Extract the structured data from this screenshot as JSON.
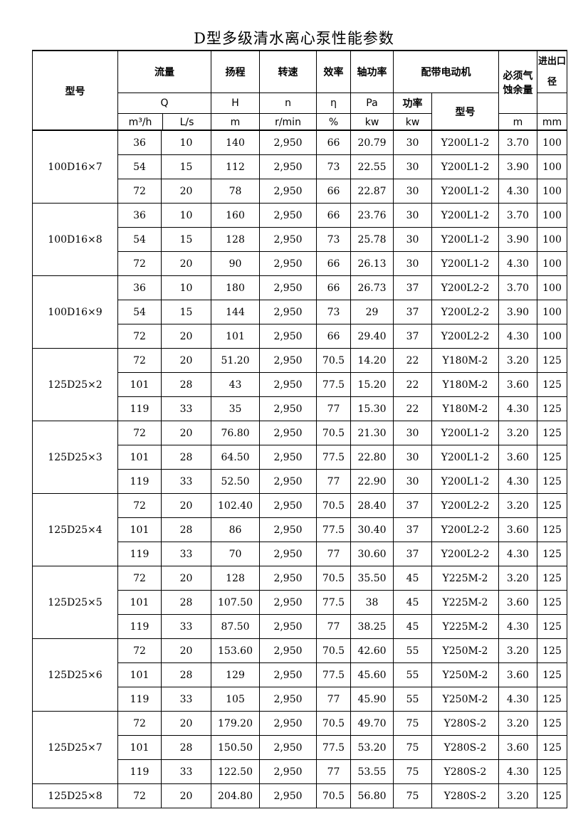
{
  "title": "D型多级清水离心泵性能参数",
  "header": {
    "model": "型号",
    "flow": "流量",
    "head": "扬程",
    "speed": "转速",
    "eff": "效率",
    "shaft_power": "轴功率",
    "motor": "配带电动机",
    "npsh": "必须气蚀余量",
    "diameter": "进出口径",
    "Q": "Q",
    "H": "H",
    "n": "n",
    "eta": "η",
    "Pa": "Pa",
    "motor_power": "功率",
    "motor_model": "型号",
    "u_flow1": "m³/h",
    "u_flow2": "L/s",
    "u_head": "m",
    "u_speed": "r/min",
    "u_eff": "%",
    "u_pa": "kw",
    "u_mp": "kw",
    "u_npsh": "m",
    "u_dia": "mm"
  },
  "groups": [
    {
      "model": "100D16×7",
      "rows": [
        [
          "36",
          "10",
          "140",
          "2,950",
          "66",
          "20.79",
          "30",
          "Y200L1-2",
          "3.70",
          "100"
        ],
        [
          "54",
          "15",
          "112",
          "2,950",
          "73",
          "22.55",
          "30",
          "Y200L1-2",
          "3.90",
          "100"
        ],
        [
          "72",
          "20",
          "78",
          "2,950",
          "66",
          "22.87",
          "30",
          "Y200L1-2",
          "4.30",
          "100"
        ]
      ]
    },
    {
      "model": "100D16×8",
      "rows": [
        [
          "36",
          "10",
          "160",
          "2,950",
          "66",
          "23.76",
          "30",
          "Y200L1-2",
          "3.70",
          "100"
        ],
        [
          "54",
          "15",
          "128",
          "2,950",
          "73",
          "25.78",
          "30",
          "Y200L1-2",
          "3.90",
          "100"
        ],
        [
          "72",
          "20",
          "90",
          "2,950",
          "66",
          "26.13",
          "30",
          "Y200L1-2",
          "4.30",
          "100"
        ]
      ]
    },
    {
      "model": "100D16×9",
      "rows": [
        [
          "36",
          "10",
          "180",
          "2,950",
          "66",
          "26.73",
          "37",
          "Y200L2-2",
          "3.70",
          "100"
        ],
        [
          "54",
          "15",
          "144",
          "2,950",
          "73",
          "29",
          "37",
          "Y200L2-2",
          "3.90",
          "100"
        ],
        [
          "72",
          "20",
          "101",
          "2,950",
          "66",
          "29.40",
          "37",
          "Y200L2-2",
          "4.30",
          "100"
        ]
      ]
    },
    {
      "model": "125D25×2",
      "rows": [
        [
          "72",
          "20",
          "51.20",
          "2,950",
          "70.5",
          "14.20",
          "22",
          "Y180M-2",
          "3.20",
          "125"
        ],
        [
          "101",
          "28",
          "43",
          "2,950",
          "77.5",
          "15.20",
          "22",
          "Y180M-2",
          "3.60",
          "125"
        ],
        [
          "119",
          "33",
          "35",
          "2,950",
          "77",
          "15.30",
          "22",
          "Y180M-2",
          "4.30",
          "125"
        ]
      ]
    },
    {
      "model": "125D25×3",
      "rows": [
        [
          "72",
          "20",
          "76.80",
          "2,950",
          "70.5",
          "21.30",
          "30",
          "Y200L1-2",
          "3.20",
          "125"
        ],
        [
          "101",
          "28",
          "64.50",
          "2,950",
          "77.5",
          "22.80",
          "30",
          "Y200L1-2",
          "3.60",
          "125"
        ],
        [
          "119",
          "33",
          "52.50",
          "2,950",
          "77",
          "22.90",
          "30",
          "Y200L1-2",
          "4.30",
          "125"
        ]
      ]
    },
    {
      "model": "125D25×4",
      "rows": [
        [
          "72",
          "20",
          "102.40",
          "2,950",
          "70.5",
          "28.40",
          "37",
          "Y200L2-2",
          "3.20",
          "125"
        ],
        [
          "101",
          "28",
          "86",
          "2,950",
          "77.5",
          "30.40",
          "37",
          "Y200L2-2",
          "3.60",
          "125"
        ],
        [
          "119",
          "33",
          "70",
          "2,950",
          "77",
          "30.60",
          "37",
          "Y200L2-2",
          "4.30",
          "125"
        ]
      ]
    },
    {
      "model": "125D25×5",
      "rows": [
        [
          "72",
          "20",
          "128",
          "2,950",
          "70.5",
          "35.50",
          "45",
          "Y225M-2",
          "3.20",
          "125"
        ],
        [
          "101",
          "28",
          "107.50",
          "2,950",
          "77.5",
          "38",
          "45",
          "Y225M-2",
          "3.60",
          "125"
        ],
        [
          "119",
          "33",
          "87.50",
          "2,950",
          "77",
          "38.25",
          "45",
          "Y225M-2",
          "4.30",
          "125"
        ]
      ]
    },
    {
      "model": "125D25×6",
      "rows": [
        [
          "72",
          "20",
          "153.60",
          "2,950",
          "70.5",
          "42.60",
          "55",
          "Y250M-2",
          "3.20",
          "125"
        ],
        [
          "101",
          "28",
          "129",
          "2,950",
          "77.5",
          "45.60",
          "55",
          "Y250M-2",
          "3.60",
          "125"
        ],
        [
          "119",
          "33",
          "105",
          "2,950",
          "77",
          "45.90",
          "55",
          "Y250M-2",
          "4.30",
          "125"
        ]
      ]
    },
    {
      "model": "125D25×7",
      "rows": [
        [
          "72",
          "20",
          "179.20",
          "2,950",
          "70.5",
          "49.70",
          "75",
          "Y280S-2",
          "3.20",
          "125"
        ],
        [
          "101",
          "28",
          "150.50",
          "2,950",
          "77.5",
          "53.20",
          "75",
          "Y280S-2",
          "3.60",
          "125"
        ],
        [
          "119",
          "33",
          "122.50",
          "2,950",
          "77",
          "53.55",
          "75",
          "Y280S-2",
          "4.30",
          "125"
        ]
      ]
    },
    {
      "model": "125D25×8",
      "rows": [
        [
          "72",
          "20",
          "204.80",
          "2,950",
          "70.5",
          "56.80",
          "75",
          "Y280S-2",
          "3.20",
          "125"
        ]
      ]
    }
  ]
}
